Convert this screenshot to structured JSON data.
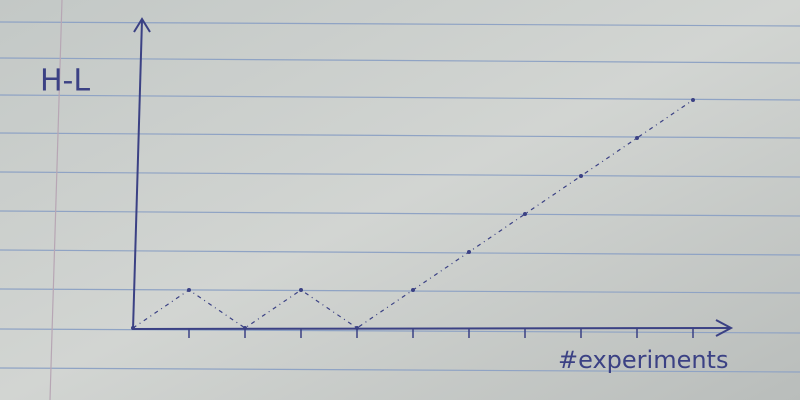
{
  "chart_data": {
    "type": "line",
    "y_label": "H-L",
    "x_label": "#experiments",
    "x": [
      0,
      1,
      2,
      3,
      4,
      5,
      6,
      7,
      8,
      9,
      10
    ],
    "series": [
      {
        "name": "H-L",
        "color": "#3b4184",
        "values": [
          0,
          1,
          0,
          1,
          0,
          1,
          2,
          3,
          4,
          5,
          6
        ]
      }
    ],
    "xlim": [
      0,
      10.5
    ],
    "ylim": [
      0,
      8
    ],
    "xticks": [
      1,
      2,
      3,
      4,
      5,
      6,
      7,
      8,
      9,
      10
    ]
  }
}
